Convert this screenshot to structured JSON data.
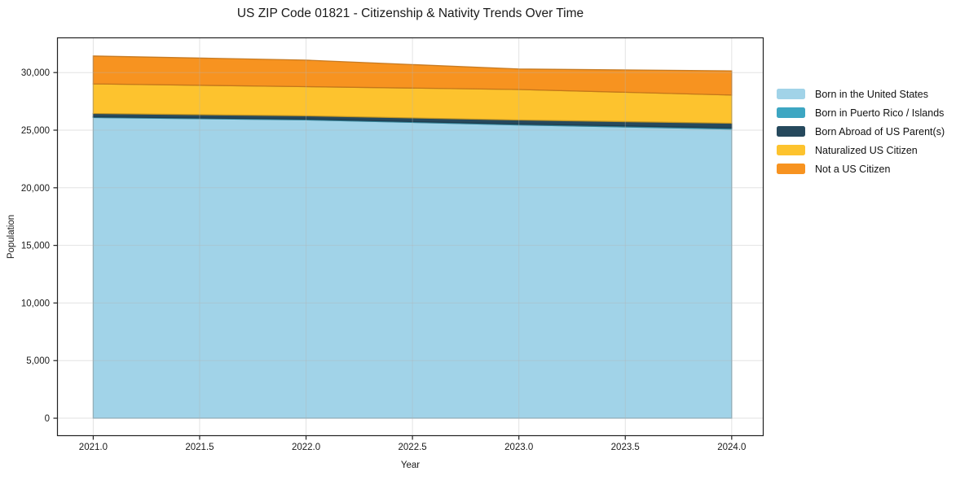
{
  "chart_data": {
    "type": "area",
    "stacked": true,
    "title": "US ZIP Code 01821 - Citizenship & Nativity Trends Over Time",
    "xlabel": "Year",
    "ylabel": "Population",
    "x": [
      2021,
      2022,
      2023,
      2024
    ],
    "series": [
      {
        "name": "Born in the United States",
        "color": "#A1D3E8",
        "values": [
          26100,
          25900,
          25450,
          25100
        ]
      },
      {
        "name": "Born in Puerto Rico / Islands",
        "color": "#3DA6C2",
        "values": [
          60,
          60,
          80,
          100
        ]
      },
      {
        "name": "Born Abroad of US Parent(s)",
        "color": "#26495D",
        "values": [
          290,
          280,
          350,
          400
        ]
      },
      {
        "name": "Naturalized US Citizen",
        "color": "#FDC32E",
        "values": [
          2570,
          2540,
          2650,
          2450
        ]
      },
      {
        "name": "Not a US Citizen",
        "color": "#F79320",
        "values": [
          2420,
          2300,
          1780,
          2100
        ]
      }
    ],
    "xticks": [
      2021.0,
      2021.5,
      2022.0,
      2022.5,
      2023.0,
      2023.5,
      2024.0
    ],
    "xtick_labels": [
      "2021.0",
      "2021.5",
      "2022.0",
      "2022.5",
      "2023.0",
      "2023.5",
      "2024.0"
    ],
    "yticks": [
      0,
      5000,
      10000,
      15000,
      20000,
      25000,
      30000
    ],
    "ytick_labels": [
      "0",
      "5,000",
      "10,000",
      "15,000",
      "20,000",
      "25,000",
      "30,000"
    ],
    "xlim": [
      2020.83,
      2024.15
    ],
    "ylim": [
      -1550,
      33050
    ],
    "grid": true,
    "legend_position": "right-outside",
    "spine_color": "#222222",
    "grid_color": "#b4b4b4",
    "text_color": "#1a1a1a"
  }
}
